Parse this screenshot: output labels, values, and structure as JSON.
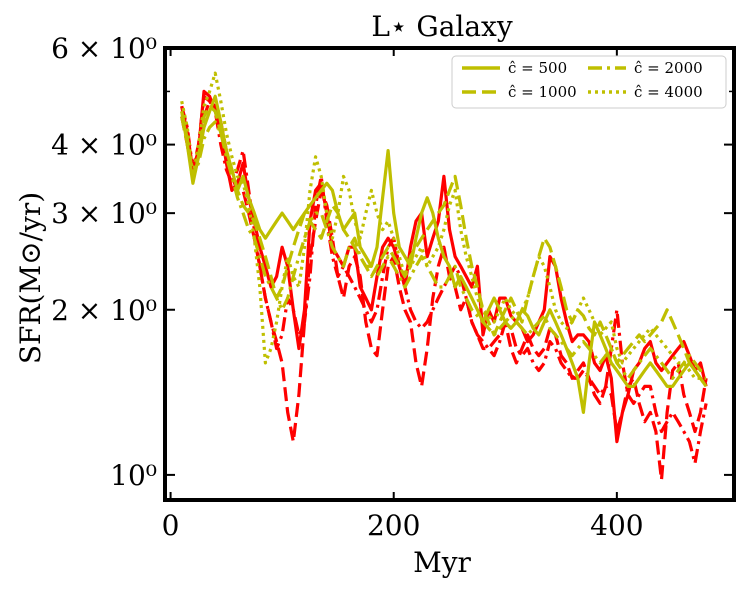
{
  "chart_data": {
    "type": "line",
    "title": "L⋆ Galaxy",
    "xlabel": "Myr",
    "ylabel": "SFR(M⊙/yr)",
    "xlim": [
      -5,
      505
    ],
    "ylim": [
      0.9,
      6.0
    ],
    "yscale": "log",
    "grid": false,
    "legend_position": "top-right",
    "x_ticks": [
      {
        "value": 0,
        "label": "0"
      },
      {
        "value": 200,
        "label": "200"
      },
      {
        "value": 400,
        "label": "400"
      }
    ],
    "y_ticks": [
      {
        "value": 1,
        "label": "10⁰"
      },
      {
        "value": 2,
        "label": "2 × 10⁰"
      },
      {
        "value": 3,
        "label": "3 × 10⁰"
      },
      {
        "value": 4,
        "label": "4 × 10⁰"
      },
      {
        "value": 6,
        "label": "6 × 10⁰"
      }
    ],
    "x": [
      10,
      15,
      20,
      25,
      30,
      35,
      40,
      45,
      50,
      55,
      60,
      65,
      70,
      75,
      80,
      85,
      90,
      95,
      100,
      105,
      110,
      115,
      120,
      125,
      130,
      135,
      140,
      145,
      150,
      155,
      160,
      165,
      170,
      175,
      180,
      185,
      190,
      195,
      200,
      205,
      210,
      215,
      220,
      225,
      230,
      235,
      240,
      245,
      250,
      255,
      260,
      265,
      270,
      275,
      280,
      285,
      290,
      295,
      300,
      305,
      310,
      315,
      320,
      325,
      330,
      335,
      340,
      345,
      350,
      355,
      360,
      365,
      370,
      375,
      380,
      385,
      390,
      395,
      400,
      405,
      410,
      415,
      420,
      425,
      430,
      435,
      440,
      445,
      450,
      455,
      460,
      465,
      470,
      475,
      480
    ],
    "series": [
      {
        "name": "red solid",
        "color": "#ff0000",
        "style": "solid",
        "values": [
          4.7,
          4.2,
          3.6,
          3.9,
          5.0,
          4.9,
          4.6,
          4.3,
          3.7,
          3.3,
          3.4,
          3.7,
          3.2,
          2.9,
          2.6,
          2.4,
          2.2,
          2.3,
          2.6,
          2.4,
          2.0,
          1.7,
          2.0,
          2.9,
          3.3,
          3.4,
          3.0,
          2.6,
          2.5,
          2.4,
          2.6,
          2.6,
          2.2,
          2.1,
          2.0,
          2.3,
          2.6,
          2.7,
          2.6,
          2.4,
          2.2,
          2.6,
          2.9,
          3.0,
          2.5,
          2.7,
          2.9,
          3.5,
          2.8,
          2.5,
          2.4,
          2.3,
          2.2,
          2.4,
          1.8,
          2.0,
          1.9,
          2.1,
          2.1,
          1.95,
          1.9,
          1.85,
          1.75,
          1.8,
          1.9,
          2.0,
          2.5,
          2.4,
          2.1,
          1.9,
          1.75,
          1.8,
          1.8,
          1.75,
          1.6,
          1.55,
          1.65,
          1.5,
          1.15,
          1.3,
          1.4,
          1.55,
          1.6,
          1.7,
          1.75,
          1.6,
          1.55,
          1.6,
          1.65,
          1.7,
          1.75,
          1.65,
          1.55,
          1.6,
          1.45
        ]
      },
      {
        "name": "red dashed",
        "color": "#ff0000",
        "style": "dashed",
        "values": [
          4.5,
          4.0,
          3.5,
          3.9,
          4.5,
          4.8,
          4.7,
          4.4,
          3.9,
          3.5,
          3.3,
          3.3,
          3.0,
          2.7,
          2.4,
          2.1,
          1.9,
          1.75,
          1.6,
          1.3,
          1.15,
          1.4,
          1.9,
          2.5,
          2.9,
          3.3,
          3.1,
          2.7,
          2.3,
          2.1,
          2.4,
          2.5,
          2.3,
          1.9,
          1.7,
          1.65,
          2.0,
          2.4,
          2.5,
          2.2,
          2.0,
          1.9,
          1.6,
          1.45,
          1.7,
          2.1,
          2.4,
          2.6,
          2.3,
          2.2,
          2.0,
          2.1,
          1.9,
          1.8,
          1.7,
          1.7,
          1.75,
          1.8,
          1.9,
          1.7,
          1.6,
          1.7,
          1.8,
          1.7,
          1.65,
          1.7,
          1.85,
          1.8,
          1.65,
          1.6,
          1.5,
          1.55,
          1.6,
          1.5,
          1.4,
          1.35,
          1.45,
          1.4,
          1.2,
          1.3,
          1.45,
          1.5,
          1.35,
          1.25,
          1.3,
          1.2,
          0.98,
          1.3,
          1.55,
          1.6,
          1.4,
          1.3,
          1.2,
          1.3,
          1.5
        ]
      },
      {
        "name": "red dashdot",
        "color": "#ff0000",
        "style": "dashdot",
        "values": [
          4.7,
          4.3,
          3.6,
          4.0,
          4.9,
          4.8,
          4.6,
          4.0,
          3.6,
          3.4,
          3.6,
          3.9,
          3.3,
          2.8,
          2.4,
          2.1,
          1.9,
          1.7,
          1.8,
          2.1,
          2.0,
          1.8,
          1.9,
          2.3,
          3.1,
          3.5,
          2.9,
          2.5,
          2.3,
          2.4,
          2.3,
          2.2,
          2.1,
          2.0,
          1.9,
          2.0,
          2.3,
          2.6,
          2.7,
          2.4,
          2.2,
          2.0,
          1.9,
          1.85,
          1.9,
          2.0,
          2.1,
          2.2,
          2.3,
          2.4,
          2.3,
          2.1,
          1.9,
          1.8,
          1.75,
          1.7,
          1.65,
          1.75,
          1.9,
          1.85,
          1.7,
          1.65,
          1.7,
          1.6,
          1.55,
          1.6,
          1.75,
          1.7,
          1.6,
          1.55,
          1.5,
          1.5,
          1.55,
          1.5,
          1.45,
          1.4,
          1.45,
          1.7,
          2.0,
          1.6,
          1.4,
          1.35,
          1.4,
          1.45,
          1.45,
          1.3,
          1.2,
          1.25,
          1.3,
          1.25,
          1.2,
          1.15,
          1.05,
          1.2,
          1.35
        ]
      },
      {
        "name": "ĉ = 500",
        "color": "#bfbf00",
        "style": "solid",
        "values": [
          4.6,
          4.0,
          3.4,
          3.8,
          4.3,
          4.6,
          4.9,
          4.4,
          3.9,
          3.6,
          3.3,
          3.5,
          3.2,
          3.0,
          2.8,
          2.7,
          2.8,
          2.9,
          3.0,
          2.9,
          2.8,
          2.9,
          3.0,
          3.1,
          3.2,
          3.3,
          3.4,
          3.3,
          3.0,
          2.8,
          2.9,
          3.0,
          2.6,
          2.5,
          2.4,
          2.6,
          3.2,
          3.9,
          3.0,
          2.6,
          2.5,
          2.4,
          2.7,
          3.0,
          3.2,
          3.0,
          2.7,
          2.5,
          2.4,
          2.2,
          2.3,
          2.2,
          2.1,
          2.0,
          1.9,
          2.0,
          2.1,
          2.0,
          1.9,
          1.85,
          1.9,
          2.0,
          1.95,
          1.85,
          1.8,
          1.9,
          2.0,
          1.9,
          1.8,
          1.7,
          1.6,
          1.5,
          1.3,
          1.6,
          1.9,
          1.8,
          1.7,
          1.6,
          1.55,
          1.5,
          1.45,
          1.45,
          1.5,
          1.55,
          1.6,
          1.55,
          1.5,
          1.45,
          1.45,
          1.5,
          1.55,
          1.6,
          1.55,
          1.5,
          1.45
        ]
      },
      {
        "name": "ĉ = 1000",
        "color": "#bfbf00",
        "style": "dashed",
        "values": [
          4.6,
          4.1,
          3.5,
          3.8,
          4.5,
          4.7,
          4.6,
          4.2,
          3.9,
          3.6,
          3.3,
          3.1,
          3.0,
          2.9,
          2.7,
          2.5,
          2.3,
          2.1,
          2.2,
          2.4,
          2.6,
          2.8,
          3.0,
          2.9,
          2.8,
          2.7,
          2.9,
          3.1,
          3.0,
          2.8,
          2.7,
          2.6,
          2.5,
          2.4,
          2.3,
          2.4,
          2.5,
          2.6,
          2.5,
          2.4,
          2.3,
          2.5,
          2.6,
          2.7,
          2.8,
          2.9,
          3.0,
          3.1,
          3.3,
          3.5,
          3.1,
          2.7,
          2.4,
          2.2,
          2.0,
          1.9,
          1.8,
          1.9,
          2.0,
          2.1,
          2.0,
          1.9,
          2.1,
          2.3,
          2.5,
          2.7,
          2.6,
          2.4,
          2.2,
          2.0,
          1.9,
          2.0,
          1.95,
          1.85,
          1.8,
          1.9,
          1.8,
          1.7,
          1.6,
          1.65,
          1.7,
          1.75,
          1.8,
          1.75,
          1.8,
          1.85,
          1.9,
          2.0,
          1.9,
          1.8,
          1.7,
          1.6,
          1.55,
          1.5,
          1.45
        ]
      },
      {
        "name": "ĉ = 2000",
        "color": "#bfbf00",
        "style": "dashdot",
        "values": [
          4.5,
          4.0,
          3.5,
          3.7,
          4.1,
          4.3,
          4.4,
          4.2,
          3.8,
          3.5,
          3.2,
          3.0,
          2.8,
          2.7,
          2.5,
          2.3,
          2.2,
          2.1,
          2.0,
          2.1,
          2.3,
          2.5,
          2.7,
          2.9,
          3.0,
          3.0,
          2.8,
          2.6,
          2.5,
          2.4,
          2.6,
          2.7,
          2.5,
          2.4,
          2.4,
          2.3,
          2.4,
          2.5,
          2.4,
          2.3,
          2.2,
          2.3,
          2.4,
          2.5,
          2.4,
          2.3,
          2.2,
          2.2,
          2.3,
          2.4,
          2.2,
          2.1,
          2.0,
          1.95,
          1.9,
          1.85,
          1.8,
          1.85,
          1.9,
          1.95,
          1.9,
          1.85,
          1.8,
          1.85,
          1.9,
          1.95,
          1.85,
          1.8,
          1.75,
          1.7,
          1.65,
          1.7,
          1.75,
          1.7,
          1.65,
          1.6,
          1.65,
          1.7,
          1.6,
          1.55,
          1.5,
          1.55,
          1.6,
          1.65,
          1.7,
          1.65,
          1.6,
          1.55,
          1.5,
          1.55,
          1.6,
          1.65,
          1.6,
          1.55,
          1.55
        ]
      },
      {
        "name": "ĉ = 4000",
        "color": "#bfbf00",
        "style": "dotted",
        "values": [
          4.8,
          4.3,
          3.5,
          4.0,
          4.7,
          5.0,
          5.4,
          4.8,
          4.2,
          3.8,
          3.5,
          3.4,
          3.1,
          2.7,
          2.2,
          1.6,
          1.7,
          1.9,
          2.2,
          2.5,
          2.3,
          2.2,
          2.6,
          3.3,
          3.8,
          3.5,
          3.0,
          2.7,
          3.0,
          3.5,
          3.3,
          2.9,
          2.7,
          3.0,
          3.3,
          3.0,
          2.8,
          2.9,
          2.7,
          2.5,
          2.3,
          2.4,
          2.5,
          2.6,
          2.4,
          2.5,
          2.6,
          2.8,
          3.1,
          3.3,
          2.8,
          2.5,
          2.3,
          2.1,
          2.0,
          1.95,
          1.9,
          2.0,
          2.1,
          2.0,
          1.95,
          2.0,
          2.1,
          2.3,
          2.5,
          2.4,
          2.2,
          2.0,
          1.9,
          1.85,
          1.9,
          2.0,
          2.1,
          2.0,
          1.9,
          1.8,
          1.85,
          1.9,
          1.7,
          1.6,
          1.65,
          1.7,
          1.75,
          1.8,
          1.85,
          1.8,
          1.75,
          1.7,
          1.65,
          1.6,
          1.6,
          1.55,
          1.5,
          1.5,
          1.5
        ]
      }
    ],
    "legend": [
      {
        "label": "ĉ = 500",
        "style": "solid"
      },
      {
        "label": "ĉ = 1000",
        "style": "dashed"
      },
      {
        "label": "ĉ = 2000",
        "style": "dashdot"
      },
      {
        "label": "ĉ = 4000",
        "style": "dotted"
      }
    ]
  }
}
